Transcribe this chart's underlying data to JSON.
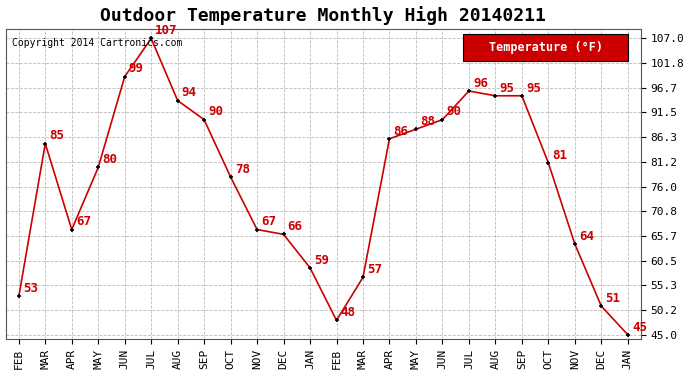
{
  "title": "Outdoor Temperature Monthly High 20140211",
  "copyright_text": "Copyright 2014 Cartronics.com",
  "months": [
    "FEB",
    "MAR",
    "APR",
    "MAY",
    "JUN",
    "JUL",
    "AUG",
    "SEP",
    "OCT",
    "NOV",
    "DEC",
    "JAN",
    "FEB",
    "MAR",
    "APR",
    "MAY",
    "JUN",
    "JUL",
    "AUG",
    "SEP",
    "OCT",
    "NOV",
    "DEC",
    "JAN"
  ],
  "values": [
    53,
    85,
    67,
    80,
    99,
    107,
    94,
    90,
    78,
    67,
    66,
    59,
    48,
    57,
    86,
    88,
    90,
    96,
    95,
    95,
    81,
    64,
    51,
    45
  ],
  "yticks": [
    45.0,
    50.2,
    55.3,
    60.5,
    65.7,
    70.8,
    76.0,
    81.2,
    86.3,
    91.5,
    96.7,
    101.8,
    107.0
  ],
  "ymin": 44.0,
  "ymax": 109.0,
  "line_color": "#cc0000",
  "marker_color": "#000000",
  "bg_color": "#ffffff",
  "grid_color": "#aaaaaa",
  "legend_label": "Temperature (°F)",
  "legend_bg": "#cc0000",
  "legend_text_color": "#ffffff",
  "title_fontsize": 13,
  "label_fontsize": 8.5,
  "tick_fontsize": 8,
  "annotation_fontsize": 9,
  "annotation_color": "#cc0000"
}
